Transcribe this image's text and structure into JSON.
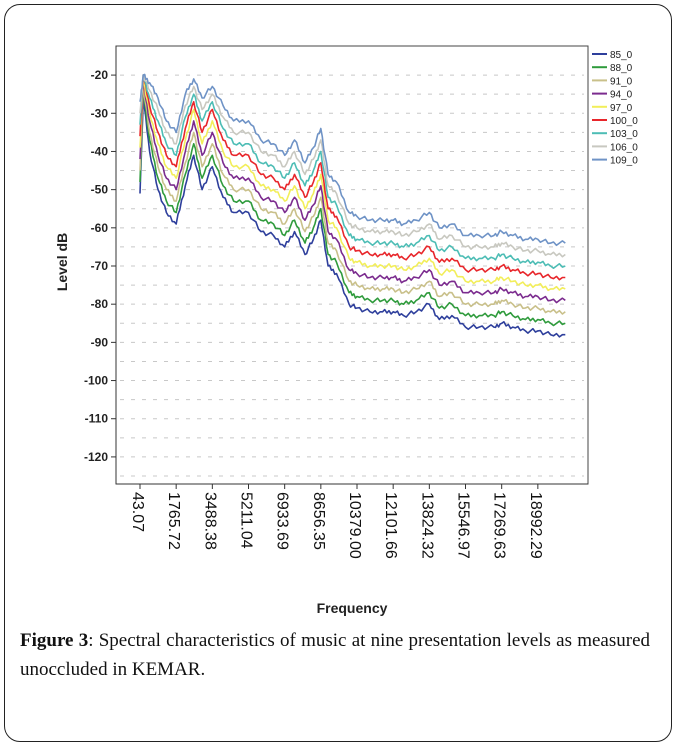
{
  "chart_data": {
    "type": "line",
    "xlabel": "Frequency",
    "ylabel": "Level  dB",
    "xlim": [
      43.07,
      21000
    ],
    "ylim": [
      -125,
      -15
    ],
    "x_ticks": [
      43.07,
      1765.72,
      3488.38,
      5211.04,
      6933.69,
      8656.35,
      10379.0,
      12101.66,
      13824.32,
      15546.97,
      17269.63,
      18992.29
    ],
    "x_tick_labels": [
      "43.07",
      "1765.72",
      "3488.38",
      "5211.04",
      "6933.69",
      "8656.35",
      "10379.00",
      "12101.66",
      "13824.32",
      "15546.97",
      "17269.63",
      "18992.29"
    ],
    "y_ticks": [
      -20,
      -30,
      -40,
      -50,
      -60,
      -70,
      -80,
      -90,
      -100,
      -110,
      -120
    ],
    "y_tick_labels": [
      "-20",
      "-30",
      "-40",
      "-50",
      "-60",
      "-70",
      "-80",
      "-90",
      "-100",
      "-110",
      "-120"
    ],
    "grid": "dashed-horizontal",
    "legend_position": "right",
    "x": [
      43.07,
      200,
      500,
      900,
      1300,
      1765.72,
      2200,
      2600,
      3000,
      3488.38,
      4000,
      4500,
      5211.04,
      5800,
      6400,
      6933.69,
      7400,
      7900,
      8300,
      8656.35,
      9000,
      9400,
      10000,
      10379.0,
      11000,
      11600,
      12101.66,
      12600,
      13200,
      13824.32,
      14300,
      14900,
      15546.97,
      16200,
      16900,
      17269.63,
      17800,
      18400,
      18992.29,
      19600,
      20300
    ],
    "series": [
      {
        "name": "85_0",
        "color": "#2e3f9c",
        "values": [
          -51,
          -26,
          -40,
          -50,
          -56,
          -59,
          -49,
          -41,
          -50,
          -44,
          -52,
          -56,
          -56,
          -61,
          -62,
          -65,
          -61,
          -67,
          -63,
          -58,
          -70,
          -72,
          -80,
          -81,
          -82,
          -82,
          -82,
          -83,
          -82,
          -80,
          -84,
          -83,
          -86,
          -86,
          -86,
          -85,
          -86,
          -87,
          -87,
          -88,
          -88
        ]
      },
      {
        "name": "88_0",
        "color": "#2f9b3c",
        "values": [
          -48,
          -24,
          -37,
          -47,
          -53,
          -56,
          -46,
          -38,
          -47,
          -41,
          -49,
          -53,
          -53,
          -58,
          -59,
          -62,
          -58,
          -64,
          -60,
          -55,
          -67,
          -69,
          -77,
          -78,
          -79,
          -79,
          -79,
          -80,
          -79,
          -77,
          -81,
          -80,
          -83,
          -83,
          -83,
          -82,
          -83,
          -84,
          -84,
          -85,
          -85
        ]
      },
      {
        "name": "91_0",
        "color": "#c9c08a",
        "values": [
          -45,
          -23,
          -35,
          -44,
          -50,
          -53,
          -43,
          -35,
          -44,
          -38,
          -46,
          -50,
          -50,
          -55,
          -56,
          -59,
          -55,
          -61,
          -57,
          -52,
          -64,
          -66,
          -74,
          -75,
          -76,
          -76,
          -76,
          -77,
          -76,
          -74,
          -78,
          -77,
          -80,
          -80,
          -80,
          -79,
          -80,
          -81,
          -81,
          -82,
          -82
        ]
      },
      {
        "name": "94_0",
        "color": "#7b2b8e",
        "values": [
          -42,
          -22,
          -32,
          -41,
          -47,
          -50,
          -40,
          -32,
          -41,
          -35,
          -43,
          -47,
          -47,
          -52,
          -53,
          -56,
          -52,
          -58,
          -54,
          -49,
          -61,
          -63,
          -71,
          -72,
          -73,
          -73,
          -73,
          -74,
          -73,
          -71,
          -75,
          -74,
          -77,
          -77,
          -77,
          -76,
          -77,
          -78,
          -78,
          -79,
          -79
        ]
      },
      {
        "name": "97_0",
        "color": "#f2ee5a",
        "values": [
          -39,
          -21,
          -30,
          -38,
          -44,
          -47,
          -37,
          -29,
          -38,
          -32,
          -40,
          -44,
          -44,
          -49,
          -50,
          -53,
          -49,
          -55,
          -51,
          -46,
          -58,
          -60,
          -68,
          -69,
          -70,
          -70,
          -70,
          -71,
          -70,
          -68,
          -72,
          -71,
          -74,
          -74,
          -74,
          -73,
          -74,
          -75,
          -75,
          -76,
          -76
        ]
      },
      {
        "name": "100_0",
        "color": "#e8262b",
        "values": [
          -36,
          -20,
          -28,
          -35,
          -41,
          -44,
          -34,
          -27,
          -35,
          -29,
          -37,
          -41,
          -41,
          -46,
          -47,
          -50,
          -46,
          -52,
          -48,
          -43,
          -55,
          -57,
          -65,
          -66,
          -67,
          -67,
          -67,
          -68,
          -67,
          -65,
          -69,
          -68,
          -71,
          -71,
          -71,
          -70,
          -71,
          -72,
          -72,
          -73,
          -73
        ]
      },
      {
        "name": "103_0",
        "color": "#4dbdb5",
        "values": [
          -33,
          -20,
          -26,
          -32,
          -38,
          -41,
          -31,
          -25,
          -32,
          -27,
          -34,
          -38,
          -38,
          -43,
          -44,
          -47,
          -43,
          -49,
          -45,
          -40,
          -52,
          -54,
          -62,
          -63,
          -64,
          -64,
          -64,
          -65,
          -64,
          -62,
          -66,
          -65,
          -68,
          -68,
          -68,
          -67,
          -68,
          -69,
          -69,
          -70,
          -70
        ]
      },
      {
        "name": "106_0",
        "color": "#c8c8c0",
        "values": [
          -30,
          -20,
          -24,
          -29,
          -35,
          -38,
          -28,
          -23,
          -29,
          -25,
          -31,
          -35,
          -35,
          -40,
          -41,
          -44,
          -40,
          -46,
          -42,
          -37,
          -49,
          -51,
          -59,
          -60,
          -61,
          -61,
          -61,
          -62,
          -61,
          -59,
          -63,
          -62,
          -65,
          -65,
          -65,
          -64,
          -65,
          -66,
          -66,
          -67,
          -67
        ]
      },
      {
        "name": "109_0",
        "color": "#6f93c6",
        "values": [
          -27,
          -20,
          -22,
          -26,
          -32,
          -35,
          -25,
          -21,
          -26,
          -23,
          -28,
          -32,
          -32,
          -37,
          -38,
          -41,
          -37,
          -43,
          -39,
          -34,
          -46,
          -48,
          -56,
          -57,
          -58,
          -58,
          -58,
          -59,
          -58,
          -56,
          -60,
          -59,
          -62,
          -62,
          -62,
          -61,
          -62,
          -63,
          -63,
          -64,
          -64
        ]
      }
    ]
  },
  "caption": {
    "label": "Figure 3",
    "text": ": Spectral characteristics of music at nine presentation levels as measured unoccluded in KEMAR."
  }
}
